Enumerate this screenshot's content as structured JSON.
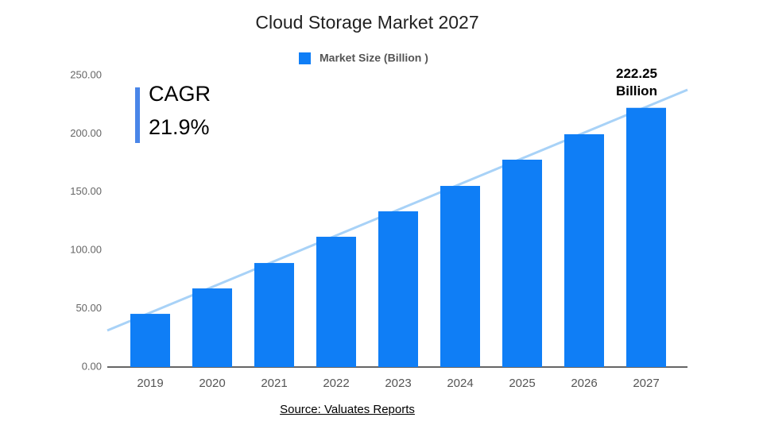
{
  "chart_data": {
    "type": "bar",
    "title": "Cloud Storage Market 2027",
    "categories": [
      "2019",
      "2020",
      "2021",
      "2022",
      "2023",
      "2024",
      "2025",
      "2026",
      "2027"
    ],
    "series": [
      {
        "name": "Market Size (Billion )",
        "color": "#0f7ef6",
        "values": [
          45.6,
          67.4,
          89.2,
          111.7,
          133.5,
          155.3,
          177.8,
          199.6,
          222.25
        ],
        "value_labels": [
          null,
          null,
          null,
          null,
          null,
          null,
          null,
          null,
          "222.25 Billion"
        ]
      }
    ],
    "ylim": [
      0,
      250
    ],
    "yticks": [
      {
        "value": 0,
        "label": "0.00"
      },
      {
        "value": 50,
        "label": "50.00"
      },
      {
        "value": 100,
        "label": "100.00"
      },
      {
        "value": 150,
        "label": "150.00"
      },
      {
        "value": 200,
        "label": "200.00"
      },
      {
        "value": 250,
        "label": "250.00"
      }
    ],
    "grid": false,
    "legend": "top",
    "annotations": [
      "CAGR",
      "21.9%"
    ],
    "source": "Source: Valuates Reports"
  }
}
